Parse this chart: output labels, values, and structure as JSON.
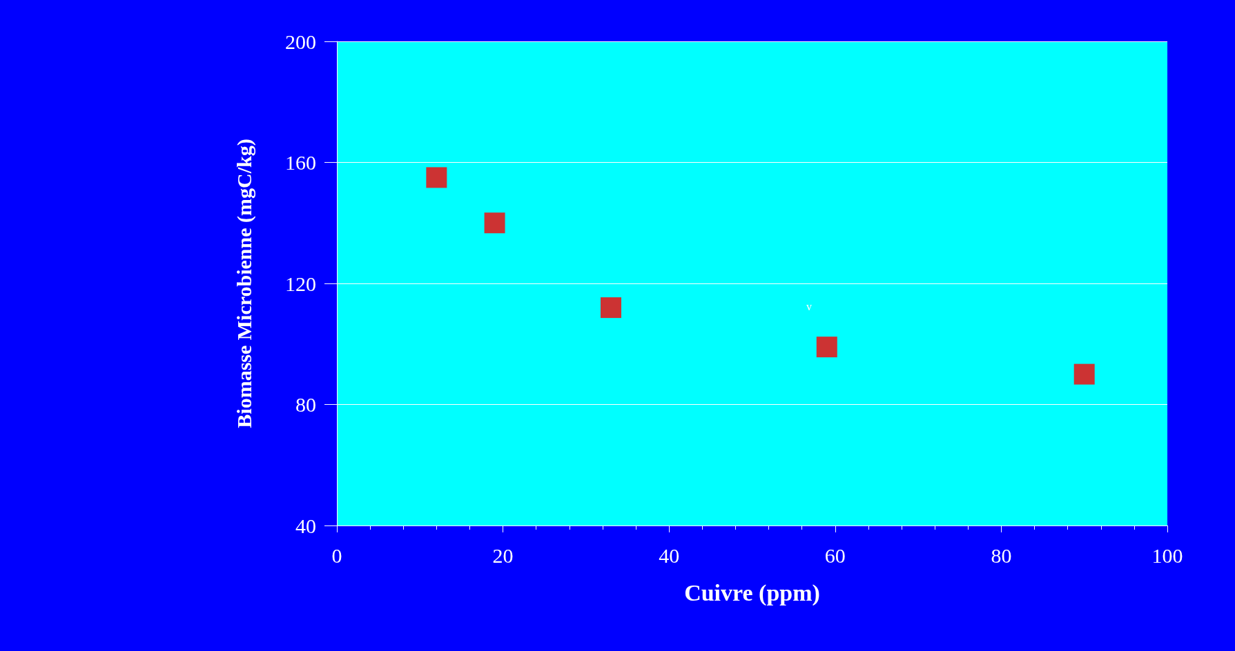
{
  "chart_data": {
    "type": "scatter",
    "xlabel": "Cuivre (ppm)",
    "ylabel": "Biomasse Microbienne (mgC/kg)",
    "x": [
      12,
      19,
      33,
      59,
      90
    ],
    "series": [
      {
        "color": "#ff0000",
        "values": [
          155,
          140,
          112,
          99,
          90
        ]
      }
    ],
    "marker": "square",
    "xlim": [
      0,
      100
    ],
    "xticks": [
      0,
      20,
      40,
      60,
      80,
      100
    ],
    "ylim": [
      40,
      200
    ],
    "yticks": [
      40,
      80,
      120,
      160,
      200
    ],
    "grid": "y",
    "annotations": [
      "v"
    ]
  }
}
